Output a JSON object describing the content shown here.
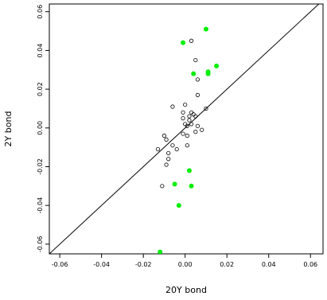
{
  "chart_data": {
    "type": "scatter",
    "title": "",
    "xlabel": "20Y bond",
    "ylabel": "2Y bond",
    "xlim": [
      -0.065,
      0.066
    ],
    "ylim": [
      -0.065,
      0.064
    ],
    "x_ticks": [
      -0.06,
      -0.04,
      -0.02,
      0.0,
      0.02,
      0.04,
      0.06
    ],
    "x_tick_labels": [
      "-0.06",
      "-0.04",
      "-0.02",
      "0.00",
      "0.02",
      "0.04",
      "0.06"
    ],
    "y_ticks": [
      -0.06,
      -0.04,
      -0.02,
      0.0,
      0.02,
      0.04,
      0.06
    ],
    "y_tick_labels": [
      "-0.06",
      "-0.04",
      "-0.02",
      "0.00",
      "0.02",
      "0.04",
      "0.06"
    ],
    "grid": false,
    "reference_line": {
      "type": "identity",
      "slope": 1,
      "intercept": 0,
      "color": "#000000"
    },
    "series": [
      {
        "marker": "open-circle",
        "color": "#000000",
        "points": [
          [
            0.003,
            0.045
          ],
          [
            0.005,
            0.035
          ],
          [
            0.006,
            0.025
          ],
          [
            0.006,
            0.017
          ],
          [
            0.01,
            0.01
          ],
          [
            0.0,
            0.012
          ],
          [
            -0.006,
            0.011
          ],
          [
            -0.001,
            0.008
          ],
          [
            0.003,
            0.008
          ],
          [
            0.004,
            0.007
          ],
          [
            0.005,
            0.006
          ],
          [
            0.002,
            0.006
          ],
          [
            0.002,
            0.004
          ],
          [
            -0.001,
            0.005
          ],
          [
            0.0,
            0.002
          ],
          [
            0.003,
            0.002
          ],
          [
            0.006,
            0.001
          ],
          [
            0.001,
            0.001
          ],
          [
            0.008,
            -0.001
          ],
          [
            0.005,
            -0.002
          ],
          [
            -0.001,
            -0.003
          ],
          [
            0.001,
            -0.004
          ],
          [
            -0.01,
            -0.004
          ],
          [
            -0.009,
            -0.006
          ],
          [
            -0.006,
            -0.009
          ],
          [
            0.001,
            -0.009
          ],
          [
            -0.013,
            -0.011
          ],
          [
            -0.004,
            -0.011
          ],
          [
            -0.008,
            -0.013
          ],
          [
            -0.008,
            -0.016
          ],
          [
            -0.009,
            -0.019
          ],
          [
            -0.011,
            -0.03
          ]
        ]
      },
      {
        "marker": "filled-circle",
        "color": "#00ee00",
        "points": [
          [
            0.01,
            0.051
          ],
          [
            -0.001,
            0.044
          ],
          [
            0.015,
            0.032
          ],
          [
            0.011,
            0.029
          ],
          [
            0.011,
            0.028
          ],
          [
            0.004,
            0.028
          ],
          [
            0.002,
            -0.022
          ],
          [
            -0.005,
            -0.029
          ],
          [
            0.003,
            -0.03
          ],
          [
            -0.003,
            -0.04
          ],
          [
            -0.012,
            -0.064
          ]
        ]
      }
    ]
  }
}
